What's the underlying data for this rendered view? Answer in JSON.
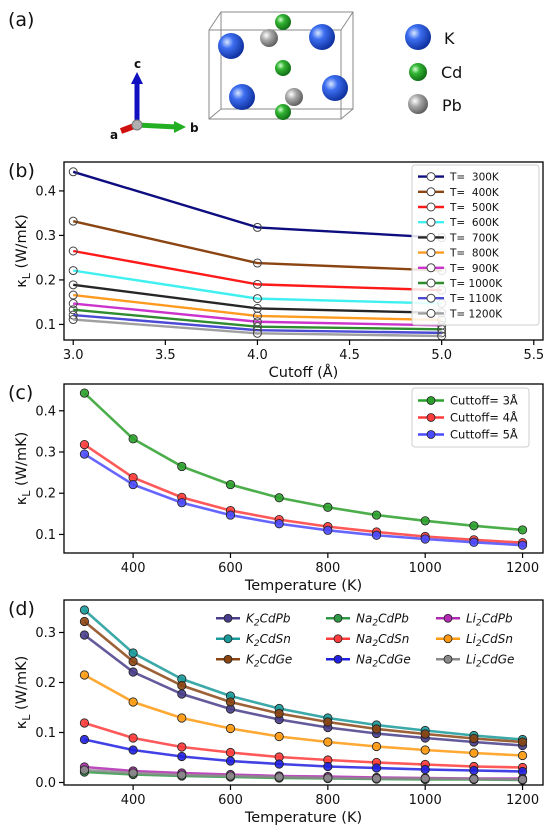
{
  "structure": {
    "panel_label": "(a)",
    "legend": [
      {
        "label": "K",
        "color": "#1f4fd6"
      },
      {
        "label": "Cd",
        "color": "#22a02a"
      },
      {
        "label": "Pb",
        "color": "#9a9a9a"
      }
    ],
    "axes": {
      "a": "a",
      "b": "b",
      "c": "c"
    }
  },
  "chart_data": [
    {
      "panel": "(b)",
      "type": "line",
      "xlabel": "Cutoff (Å)",
      "ylabel": "κL (W/mK)",
      "xlim": [
        2.95,
        5.55
      ],
      "ylim": [
        0.065,
        0.465
      ],
      "xticks": [
        3.0,
        3.5,
        4.0,
        4.5,
        5.0,
        5.5
      ],
      "xtick_labels": [
        "3.0",
        "3.5",
        "4.0",
        "4.5",
        "5.0",
        "5.5"
      ],
      "yticks": [
        0.1,
        0.2,
        0.3,
        0.4
      ],
      "ytick_labels": [
        "0.1",
        "0.2",
        "0.3",
        "0.4"
      ],
      "x": [
        3,
        4,
        5
      ],
      "legend_position": "top-right",
      "series": [
        {
          "name": "T=  300K",
          "color": "#0d0d80",
          "values": [
            0.443,
            0.318,
            0.295
          ]
        },
        {
          "name": "T=  400K",
          "color": "#8b4513",
          "values": [
            0.332,
            0.238,
            0.221
          ]
        },
        {
          "name": "T=  500K",
          "color": "#ff1a1a",
          "values": [
            0.265,
            0.19,
            0.177
          ]
        },
        {
          "name": "T=  600K",
          "color": "#40f0f0",
          "values": [
            0.221,
            0.158,
            0.147
          ]
        },
        {
          "name": "T=  700K",
          "color": "#262626",
          "values": [
            0.189,
            0.136,
            0.126
          ]
        },
        {
          "name": "T=  800K",
          "color": "#ff9a20",
          "values": [
            0.166,
            0.119,
            0.11
          ]
        },
        {
          "name": "T=  900K",
          "color": "#cc33cc",
          "values": [
            0.147,
            0.106,
            0.098
          ]
        },
        {
          "name": "T= 1000K",
          "color": "#2e8b2e",
          "values": [
            0.133,
            0.095,
            0.089
          ]
        },
        {
          "name": "T= 1100K",
          "color": "#4b4bd6",
          "values": [
            0.121,
            0.087,
            0.081
          ]
        },
        {
          "name": "T= 1200K",
          "color": "#a0a0a0",
          "values": [
            0.111,
            0.08,
            0.074
          ]
        }
      ]
    },
    {
      "panel": "(c)",
      "type": "line",
      "xlabel": "Temperature (K)",
      "ylabel": "κL (W/mK)",
      "xlim": [
        258,
        1242
      ],
      "ylim": [
        0.055,
        0.465
      ],
      "xticks": [
        400,
        600,
        800,
        1000,
        1200
      ],
      "xtick_labels": [
        "400",
        "600",
        "800",
        "1000",
        "1200"
      ],
      "yticks": [
        0.1,
        0.2,
        0.3,
        0.4
      ],
      "ytick_labels": [
        "0.1",
        "0.2",
        "0.3",
        "0.4"
      ],
      "x": [
        300,
        400,
        500,
        600,
        700,
        800,
        900,
        1000,
        1100,
        1200
      ],
      "legend_position": "top-right",
      "series": [
        {
          "name": "Cuttoff= 3Å",
          "color": "#2ca02c",
          "values": [
            0.443,
            0.332,
            0.265,
            0.221,
            0.189,
            0.166,
            0.147,
            0.133,
            0.121,
            0.111
          ]
        },
        {
          "name": "Cuttoff= 4Å",
          "color": "#ff3b3b",
          "values": [
            0.318,
            0.238,
            0.19,
            0.158,
            0.136,
            0.119,
            0.106,
            0.095,
            0.087,
            0.08
          ]
        },
        {
          "name": "Cuttoff= 5Å",
          "color": "#4b4bff",
          "values": [
            0.295,
            0.221,
            0.177,
            0.147,
            0.126,
            0.11,
            0.098,
            0.089,
            0.081,
            0.074
          ]
        }
      ]
    },
    {
      "panel": "(d)",
      "type": "line",
      "xlabel": "Temperature (K)",
      "ylabel": "κL (W/mK)",
      "xlim": [
        258,
        1242
      ],
      "ylim": [
        -0.005,
        0.365
      ],
      "xticks": [
        400,
        600,
        800,
        1000,
        1200
      ],
      "xtick_labels": [
        "400",
        "600",
        "800",
        "1000",
        "1200"
      ],
      "yticks": [
        0.0,
        0.1,
        0.2,
        0.3
      ],
      "ytick_labels": [
        "0.0",
        "0.1",
        "0.2",
        "0.3"
      ],
      "x": [
        300,
        400,
        500,
        600,
        700,
        800,
        900,
        1000,
        1100,
        1200
      ],
      "legend_position": "top-right",
      "series": [
        {
          "name": "K2CdPb",
          "formula": [
            "K",
            "2",
            "CdPb"
          ],
          "color": "#483d8b",
          "values": [
            0.295,
            0.221,
            0.177,
            0.147,
            0.126,
            0.11,
            0.098,
            0.089,
            0.081,
            0.074
          ]
        },
        {
          "name": "K2CdSn",
          "formula": [
            "K",
            "2",
            "CdSn"
          ],
          "color": "#1a9a9a",
          "values": [
            0.345,
            0.259,
            0.207,
            0.173,
            0.148,
            0.129,
            0.115,
            0.104,
            0.094,
            0.086
          ]
        },
        {
          "name": "K2CdGe",
          "formula": [
            "K",
            "2",
            "CdGe"
          ],
          "color": "#8b4513",
          "values": [
            0.322,
            0.242,
            0.194,
            0.161,
            0.138,
            0.121,
            0.107,
            0.097,
            0.088,
            0.081
          ]
        },
        {
          "name": "Na2CdPb",
          "formula": [
            "Na",
            "2",
            "CdPb"
          ],
          "color": "#2e9a46",
          "values": [
            0.021,
            0.016,
            0.013,
            0.011,
            0.009,
            0.008,
            0.007,
            0.006,
            0.006,
            0.005
          ]
        },
        {
          "name": "Na2CdSn",
          "formula": [
            "Na",
            "2",
            "CdSn"
          ],
          "color": "#ff3b3b",
          "values": [
            0.119,
            0.089,
            0.071,
            0.06,
            0.051,
            0.045,
            0.04,
            0.036,
            0.032,
            0.03
          ]
        },
        {
          "name": "Na2CdGe",
          "formula": [
            "Na",
            "2",
            "CdGe"
          ],
          "color": "#2020e0",
          "values": [
            0.086,
            0.065,
            0.052,
            0.043,
            0.037,
            0.032,
            0.029,
            0.026,
            0.024,
            0.022
          ]
        },
        {
          "name": "Li2CdPb",
          "formula": [
            "Li",
            "2",
            "CdPb"
          ],
          "color": "#b22bb2",
          "values": [
            0.031,
            0.023,
            0.019,
            0.016,
            0.013,
            0.012,
            0.01,
            0.009,
            0.008,
            0.008
          ]
        },
        {
          "name": "Li2CdSn",
          "formula": [
            "Li",
            "2",
            "CdSn"
          ],
          "color": "#ff9a10",
          "values": [
            0.215,
            0.161,
            0.129,
            0.108,
            0.092,
            0.081,
            0.072,
            0.065,
            0.059,
            0.054
          ]
        },
        {
          "name": "Li2CdGe",
          "formula": [
            "Li",
            "2",
            "CdGe"
          ],
          "color": "#8a8a8a",
          "values": [
            0.025,
            0.019,
            0.015,
            0.013,
            0.011,
            0.009,
            0.008,
            0.008,
            0.007,
            0.006
          ]
        }
      ]
    }
  ]
}
